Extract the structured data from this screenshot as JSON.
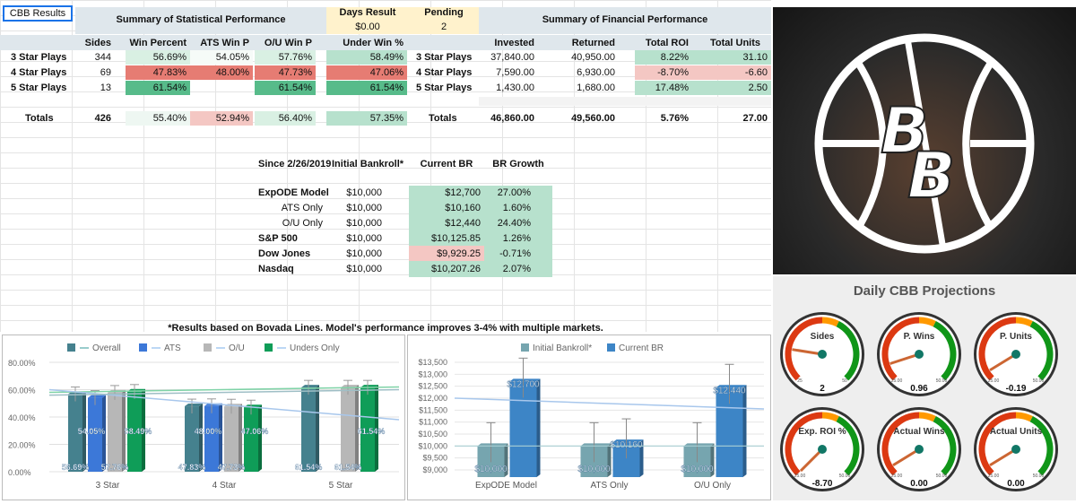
{
  "tab_label": "CBB Results",
  "stat_title": "Summary of Statistical Performance",
  "fin_title": "Summary of Financial Performance",
  "days_result": {
    "label": "Days Result",
    "value": "$0.00"
  },
  "pending": {
    "label": "Pending",
    "value": "2"
  },
  "stat_headers": [
    "Sides",
    "Win Percent",
    "ATS Win P",
    "O/U Win P",
    "Under Win %"
  ],
  "stat_rows": [
    {
      "label": "3 Star Plays",
      "sides": "344",
      "win": "56.69%",
      "ats": "54.05%",
      "ou": "57.76%",
      "under": "58.49%"
    },
    {
      "label": "4 Star Plays",
      "sides": "69",
      "win": "47.83%",
      "ats": "48.00%",
      "ou": "47.73%",
      "under": "47.06%"
    },
    {
      "label": "5 Star Plays",
      "sides": "13",
      "win": "61.54%",
      "ats": "",
      "ou": "61.54%",
      "under": "61.54%"
    }
  ],
  "stat_totals": {
    "label": "Totals",
    "sides": "426",
    "win": "55.40%",
    "ats": "52.94%",
    "ou": "56.40%",
    "under": "57.35%"
  },
  "fin_headers": [
    "Invested",
    "Returned",
    "Total ROI",
    "Total Units"
  ],
  "fin_rows": [
    {
      "label": "3 Star Plays",
      "invested": "37,840.00",
      "returned": "40,950.00",
      "roi": "8.22%",
      "units": "31.10"
    },
    {
      "label": "4 Star Plays",
      "invested": "7,590.00",
      "returned": "6,930.00",
      "roi": "-8.70%",
      "units": "-6.60"
    },
    {
      "label": "5 Star Plays",
      "invested": "1,430.00",
      "returned": "1,680.00",
      "roi": "17.48%",
      "units": "2.50"
    }
  ],
  "fin_totals": {
    "label": "Totals",
    "invested": "46,860.00",
    "returned": "49,560.00",
    "roi": "5.76%",
    "units": "27.00"
  },
  "br_headers": [
    "Since 2/26/2019",
    "Initial Bankroll*",
    "Current BR",
    "BR Growth"
  ],
  "br_rows": [
    {
      "label": "ExpODE Model",
      "initial": "$10,000",
      "current": "$12,700",
      "growth": "27.00%"
    },
    {
      "label": "ATS Only",
      "initial": "$10,000",
      "current": "$10,160",
      "growth": "1.60%"
    },
    {
      "label": "O/U Only",
      "initial": "$10,000",
      "current": "$12,440",
      "growth": "24.40%"
    },
    {
      "label": "S&P 500",
      "initial": "$10,000",
      "current": "$10,125.85",
      "growth": "1.26%"
    },
    {
      "label": "Dow Jones",
      "initial": "$10,000",
      "current": "$9,929.25",
      "growth": "-0.71%"
    },
    {
      "label": "Nasdaq",
      "initial": "$10,000",
      "current": "$10,207.26",
      "growth": "2.07%"
    }
  ],
  "footnote": "*Results based on Bovada Lines. Model's performance improves 3-4% with multiple markets.",
  "projections_title": "Daily CBB Projections",
  "gauges": [
    {
      "label": "Sides",
      "value": "2",
      "min": "25",
      "max": "50",
      "level": 0.2
    },
    {
      "label": "P. Wins",
      "value": "0.96",
      "min": "25.00",
      "max": "50.00",
      "level": 0.1
    },
    {
      "label": "P. Units",
      "value": "-0.19",
      "min": "25.00",
      "max": "50.00",
      "level": 0.05
    },
    {
      "label": "Exp. ROI %",
      "value": "-8.70",
      "min": "25.00",
      "max": "50.00",
      "level": 0.0
    },
    {
      "label": "Actual Wins",
      "value": "0.00",
      "min": "25.00",
      "max": "50.00",
      "level": 0.05
    },
    {
      "label": "Actual Units",
      "value": "0.00",
      "min": "25.00",
      "max": "50.00",
      "level": 0.05
    }
  ],
  "colors": {
    "overall": "#45818e",
    "ats": "#3c78d8",
    "ou": "#b7b7b7",
    "unders": "#0f9d58",
    "initial": "#76a5af",
    "current": "#3d85c6"
  },
  "chart_data": [
    {
      "type": "bar",
      "categories": [
        "3 Star",
        "4 Star",
        "5 Star"
      ],
      "series": [
        {
          "name": "Overall",
          "values": [
            56.69,
            47.83,
            61.54
          ],
          "labels": [
            "56.69%",
            "47.83%",
            "61.54%"
          ]
        },
        {
          "name": "ATS",
          "values": [
            54.05,
            48.0,
            0
          ],
          "labels": [
            "54.05%",
            "48.00%",
            ""
          ]
        },
        {
          "name": "O/U",
          "values": [
            57.76,
            47.73,
            61.54
          ],
          "labels": [
            "57.76%",
            "47.73%",
            "61.54%"
          ]
        },
        {
          "name": "Unders Only",
          "values": [
            58.49,
            47.06,
            61.54
          ],
          "labels": [
            "58.49%",
            "47.06%",
            "61.54%"
          ]
        }
      ],
      "yticks": [
        "0.00%",
        "20.00%",
        "40.00%",
        "60.00%",
        "80.00%"
      ],
      "ylim": [
        0,
        80
      ]
    },
    {
      "type": "bar",
      "categories": [
        "ExpODE Model",
        "ATS Only",
        "O/U Only"
      ],
      "series": [
        {
          "name": "Initial Bankroll*",
          "values": [
            10000,
            10000,
            10000
          ],
          "labels": [
            "$10,000",
            "$10,000",
            "$10,000"
          ]
        },
        {
          "name": "Current BR",
          "values": [
            12700,
            10160,
            12440
          ],
          "labels": [
            "$12,700",
            "$10,160",
            "$12,440"
          ]
        }
      ],
      "yticks": [
        "$9,000",
        "$9,500",
        "$10,000",
        "$10,500",
        "$11,000",
        "$11,500",
        "$12,000",
        "$12,500",
        "$13,000",
        "$13,500"
      ],
      "ylim": [
        9000,
        13500
      ]
    }
  ]
}
